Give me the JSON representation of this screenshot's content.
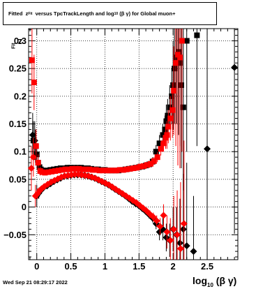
{
  "title": {
    "prefix": "Fitted",
    "z_main": "z",
    "z_sub": "Fit",
    "mid": "versus TpcTrackLength and log",
    "log_sub": "10",
    "beta_gamma": "(β γ)",
    "suffix": "for Global muon+"
  },
  "footer_date": "Wed Sep 21 08:29:17 2022",
  "axis_labels": {
    "x_main": "log",
    "x_sub": "10",
    "x_tail": "(β γ)",
    "y_main": "z",
    "y_sub": "Fit"
  },
  "colors": {
    "red": "#ff0000",
    "black": "#000000",
    "grid": "#000000"
  },
  "chart_data": {
    "type": "scatter",
    "xlim": [
      -0.12,
      2.95
    ],
    "ylim": [
      -0.095,
      0.322
    ],
    "xticks": [
      0,
      0.5,
      1,
      1.5,
      2,
      2.5
    ],
    "xtick_labels": [
      "0",
      "0.5",
      "1",
      "1.5",
      "2",
      "2.5"
    ],
    "yticks": [
      -0.05,
      0,
      0.05,
      0.1,
      0.15,
      0.2,
      0.25,
      0.3
    ],
    "ytick_labels": [
      "−0.05",
      "0",
      "0.05",
      "0.1",
      "0.15",
      "0.2",
      "0.25",
      "0.3"
    ],
    "grid": true,
    "series": [
      {
        "color": "#000000",
        "marker": "square",
        "band": "upper",
        "x": [
          -0.05,
          -0.02,
          0.0,
          0.02,
          0.04,
          0.06,
          0.08,
          0.1,
          0.15,
          0.2,
          0.25,
          0.3,
          0.35,
          0.4,
          0.45,
          0.5,
          0.55,
          0.6,
          0.65,
          0.7,
          0.75,
          0.8,
          0.85,
          0.9,
          0.95,
          1.0,
          1.05,
          1.1,
          1.15,
          1.2,
          1.25,
          1.3,
          1.35,
          1.4,
          1.45,
          1.5,
          1.55,
          1.6,
          1.65,
          1.7,
          1.75,
          1.8,
          1.85,
          1.88,
          1.9,
          1.92,
          1.95,
          1.98,
          2.0,
          2.02,
          2.05,
          2.08,
          2.1,
          2.12,
          2.15,
          2.2,
          2.35
        ],
        "y": [
          0.12,
          0.11,
          0.095,
          0.08,
          0.072,
          0.068,
          0.066,
          0.065,
          0.066,
          0.067,
          0.068,
          0.069,
          0.07,
          0.07,
          0.071,
          0.071,
          0.071,
          0.071,
          0.071,
          0.07,
          0.07,
          0.069,
          0.068,
          0.068,
          0.067,
          0.067,
          0.066,
          0.066,
          0.066,
          0.066,
          0.067,
          0.068,
          0.069,
          0.07,
          0.071,
          0.072,
          0.073,
          0.075,
          0.077,
          0.082,
          0.1,
          0.115,
          0.13,
          0.14,
          0.155,
          0.165,
          0.18,
          0.2,
          0.22,
          0.25,
          0.27,
          0.28,
          0.26,
          0.22,
          0.18,
          0.3,
          0.31
        ],
        "err": [
          0.035,
          0.03,
          0.02,
          0.012,
          0.008,
          0.006,
          0.005,
          0.004,
          0.003,
          0.003,
          0.003,
          0.003,
          0.003,
          0.003,
          0.003,
          0.003,
          0.003,
          0.003,
          0.003,
          0.003,
          0.003,
          0.003,
          0.003,
          0.003,
          0.003,
          0.003,
          0.003,
          0.003,
          0.003,
          0.003,
          0.003,
          0.003,
          0.003,
          0.003,
          0.003,
          0.004,
          0.004,
          0.005,
          0.006,
          0.008,
          0.012,
          0.015,
          0.02,
          0.025,
          0.03,
          0.03,
          0.04,
          0.05,
          0.08,
          0.1,
          0.12,
          0.15,
          0.15,
          0.15,
          0.15,
          0.2,
          0.2
        ]
      },
      {
        "color": "#000000",
        "marker": "diamond",
        "band": "lower",
        "x": [
          -0.06,
          -0.03,
          0.0,
          0.03,
          0.06,
          0.1,
          0.15,
          0.2,
          0.25,
          0.3,
          0.35,
          0.4,
          0.45,
          0.5,
          0.55,
          0.6,
          0.65,
          0.7,
          0.75,
          0.8,
          0.85,
          0.9,
          0.95,
          1.0,
          1.05,
          1.1,
          1.15,
          1.2,
          1.25,
          1.3,
          1.35,
          1.4,
          1.45,
          1.5,
          1.55,
          1.6,
          1.65,
          1.7,
          1.75,
          1.8,
          1.85,
          1.9,
          1.95,
          2.0,
          2.05,
          2.1,
          2.15,
          2.2,
          2.3,
          2.5,
          2.9
        ],
        "y": [
          0.13,
          0.12,
          0.02,
          0.025,
          0.03,
          0.035,
          0.038,
          0.042,
          0.046,
          0.049,
          0.052,
          0.055,
          0.056,
          0.057,
          0.058,
          0.058,
          0.058,
          0.057,
          0.056,
          0.054,
          0.052,
          0.049,
          0.046,
          0.043,
          0.04,
          0.036,
          0.032,
          0.028,
          0.024,
          0.02,
          0.015,
          0.01,
          0.006,
          0.002,
          -0.003,
          -0.008,
          -0.014,
          -0.02,
          -0.03,
          -0.045,
          -0.04,
          -0.055,
          -0.06,
          -0.04,
          -0.05,
          -0.065,
          -0.04,
          -0.07,
          -0.08,
          0.105,
          0.252
        ],
        "err": [
          0.04,
          0.035,
          0.02,
          0.01,
          0.006,
          0.004,
          0.003,
          0.003,
          0.003,
          0.003,
          0.003,
          0.003,
          0.003,
          0.003,
          0.003,
          0.003,
          0.003,
          0.003,
          0.003,
          0.003,
          0.003,
          0.003,
          0.003,
          0.003,
          0.003,
          0.003,
          0.003,
          0.003,
          0.003,
          0.003,
          0.003,
          0.003,
          0.003,
          0.004,
          0.005,
          0.006,
          0.007,
          0.008,
          0.01,
          0.015,
          0.02,
          0.025,
          0.03,
          0.04,
          0.05,
          0.08,
          0.1,
          0.15,
          0.1,
          0.3,
          0.3
        ]
      },
      {
        "color": "#ff0000",
        "marker": "square",
        "band": "upper",
        "x": [
          -0.07,
          -0.04,
          -0.01,
          0.02,
          0.05,
          0.08,
          0.12,
          0.17,
          0.22,
          0.27,
          0.32,
          0.37,
          0.42,
          0.47,
          0.52,
          0.57,
          0.62,
          0.67,
          0.72,
          0.77,
          0.82,
          0.87,
          0.92,
          0.97,
          1.02,
          1.07,
          1.12,
          1.17,
          1.22,
          1.27,
          1.32,
          1.37,
          1.42,
          1.47,
          1.52,
          1.57,
          1.62,
          1.67,
          1.72,
          1.77,
          1.82,
          1.86,
          1.89,
          1.91,
          1.93,
          1.96,
          1.99,
          2.01,
          2.04,
          2.07,
          2.1,
          2.13
        ],
        "y": [
          0.265,
          0.225,
          0.11,
          0.08,
          0.065,
          0.063,
          0.062,
          0.063,
          0.064,
          0.065,
          0.066,
          0.067,
          0.068,
          0.068,
          0.069,
          0.069,
          0.069,
          0.068,
          0.068,
          0.068,
          0.067,
          0.067,
          0.066,
          0.066,
          0.066,
          0.066,
          0.066,
          0.066,
          0.067,
          0.067,
          0.068,
          0.069,
          0.07,
          0.071,
          0.073,
          0.074,
          0.076,
          0.078,
          0.083,
          0.09,
          0.105,
          0.115,
          0.125,
          0.13,
          0.145,
          0.16,
          0.175,
          0.21,
          0.26,
          0.275,
          0.27,
          0.3
        ],
        "err": [
          0.06,
          0.05,
          0.03,
          0.015,
          0.008,
          0.005,
          0.004,
          0.003,
          0.003,
          0.003,
          0.003,
          0.003,
          0.003,
          0.003,
          0.003,
          0.003,
          0.003,
          0.003,
          0.003,
          0.003,
          0.003,
          0.003,
          0.003,
          0.003,
          0.003,
          0.003,
          0.003,
          0.003,
          0.003,
          0.003,
          0.003,
          0.003,
          0.003,
          0.004,
          0.004,
          0.005,
          0.005,
          0.006,
          0.007,
          0.009,
          0.012,
          0.015,
          0.02,
          0.025,
          0.03,
          0.04,
          0.05,
          0.08,
          0.15,
          0.2,
          0.2,
          0.2
        ]
      },
      {
        "color": "#ff0000",
        "marker": "diamond",
        "band": "lower",
        "x": [
          -0.08,
          -0.05,
          -0.02,
          0.01,
          0.04,
          0.07,
          0.11,
          0.16,
          0.21,
          0.26,
          0.31,
          0.36,
          0.41,
          0.46,
          0.51,
          0.56,
          0.61,
          0.66,
          0.71,
          0.76,
          0.81,
          0.86,
          0.91,
          0.96,
          1.01,
          1.06,
          1.11,
          1.16,
          1.21,
          1.26,
          1.31,
          1.36,
          1.41,
          1.46,
          1.51,
          1.56,
          1.61,
          1.66,
          1.71,
          1.76,
          1.81,
          1.86,
          1.91,
          1.96,
          2.01,
          2.06,
          2.11,
          2.16
        ],
        "y": [
          0.07,
          0.09,
          0.02,
          0.024,
          0.029,
          0.033,
          0.037,
          0.041,
          0.045,
          0.048,
          0.051,
          0.054,
          0.056,
          0.057,
          0.058,
          0.059,
          0.059,
          0.058,
          0.057,
          0.056,
          0.054,
          0.052,
          0.049,
          0.046,
          0.043,
          0.04,
          0.036,
          0.032,
          0.028,
          0.024,
          0.02,
          0.016,
          0.012,
          0.008,
          0.003,
          -0.002,
          -0.007,
          -0.013,
          -0.018,
          -0.025,
          -0.035,
          -0.015,
          -0.045,
          -0.06,
          -0.04,
          -0.05,
          -0.075,
          -0.03
        ],
        "err": [
          0.04,
          0.035,
          0.02,
          0.01,
          0.006,
          0.004,
          0.003,
          0.003,
          0.003,
          0.003,
          0.003,
          0.003,
          0.003,
          0.003,
          0.003,
          0.003,
          0.003,
          0.003,
          0.003,
          0.003,
          0.003,
          0.003,
          0.003,
          0.003,
          0.003,
          0.003,
          0.003,
          0.003,
          0.003,
          0.003,
          0.003,
          0.003,
          0.003,
          0.003,
          0.004,
          0.005,
          0.006,
          0.007,
          0.008,
          0.01,
          0.015,
          0.02,
          0.03,
          0.04,
          0.06,
          0.08,
          0.12,
          0.15
        ]
      }
    ]
  }
}
